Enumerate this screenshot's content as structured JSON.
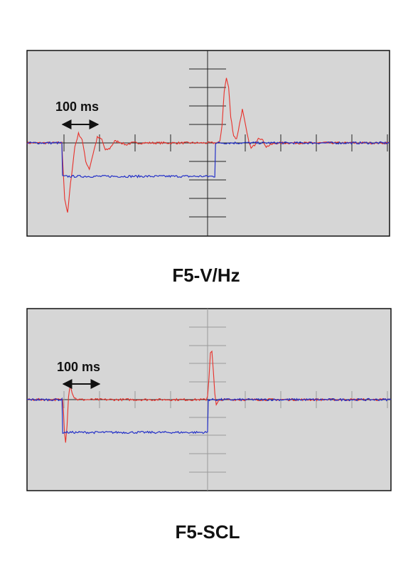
{
  "colors": {
    "background": "#ffffff",
    "screen": "#d6d6d6",
    "frame": "#111111",
    "grid": "#222222",
    "center_axis_light": "#9a9a9a",
    "red_trace": "#e8302a",
    "blue_trace": "#2330c8"
  },
  "chart_data": [
    {
      "type": "line",
      "title": "F5-V/Hz",
      "time_scale_label": "100 ms",
      "x_unit": "ms",
      "xlim": [
        0,
        1000
      ],
      "ylim": [
        -5,
        5
      ],
      "grid": "center cross with tick marks",
      "series": [
        {
          "color": "#e8302a",
          "points": [
            [
              0,
              0
            ],
            [
              96,
              0
            ],
            [
              98,
              -0.8
            ],
            [
              104,
              -3.0
            ],
            [
              112,
              -3.8
            ],
            [
              120,
              -2.2
            ],
            [
              132,
              -0.2
            ],
            [
              142,
              0.5
            ],
            [
              152,
              0.2
            ],
            [
              162,
              -1.0
            ],
            [
              172,
              -1.4
            ],
            [
              182,
              -0.6
            ],
            [
              194,
              0.3
            ],
            [
              206,
              0.2
            ],
            [
              216,
              -0.4
            ],
            [
              228,
              -0.3
            ],
            [
              242,
              0.1
            ],
            [
              256,
              0.05
            ],
            [
              272,
              -0.1
            ],
            [
              290,
              0
            ],
            [
              520,
              0
            ],
            [
              532,
              0.05
            ],
            [
              538,
              1.0
            ],
            [
              544,
              2.8
            ],
            [
              550,
              3.5
            ],
            [
              556,
              3.0
            ],
            [
              562,
              1.4
            ],
            [
              570,
              0.4
            ],
            [
              578,
              0.2
            ],
            [
              586,
              1.0
            ],
            [
              594,
              1.8
            ],
            [
              600,
              1.2
            ],
            [
              610,
              0.2
            ],
            [
              618,
              -0.3
            ],
            [
              628,
              -0.1
            ],
            [
              638,
              0.3
            ],
            [
              648,
              0.2
            ],
            [
              660,
              -0.2
            ],
            [
              672,
              -0.1
            ],
            [
              690,
              0
            ],
            [
              1000,
              0
            ]
          ]
        },
        {
          "color": "#2330c8",
          "points": [
            [
              0,
              0
            ],
            [
              96,
              0
            ],
            [
              98,
              -1.8
            ],
            [
              1000,
              -1.8
            ]
          ],
          "step_back_at": 520
        }
      ]
    },
    {
      "type": "line",
      "title": "F5-SCL",
      "time_scale_label": "100 ms",
      "x_unit": "ms",
      "xlim": [
        0,
        1000
      ],
      "ylim": [
        -5,
        5
      ],
      "grid": "center cross with tick marks",
      "series": [
        {
          "color": "#e8302a",
          "points": [
            [
              0,
              0
            ],
            [
              98,
              0
            ],
            [
              100,
              -0.6
            ],
            [
              103,
              -1.8
            ],
            [
              106,
              -2.3
            ],
            [
              110,
              -1.4
            ],
            [
              114,
              0.2
            ],
            [
              118,
              0.8
            ],
            [
              124,
              0.4
            ],
            [
              130,
              0.1
            ],
            [
              140,
              0
            ],
            [
              492,
              0
            ],
            [
              496,
              0.2
            ],
            [
              500,
              1.2
            ],
            [
              504,
              2.6
            ],
            [
              508,
              2.7
            ],
            [
              512,
              1.6
            ],
            [
              516,
              0.3
            ],
            [
              520,
              -0.3
            ],
            [
              526,
              -0.1
            ],
            [
              536,
              0
            ],
            [
              1000,
              0
            ]
          ]
        },
        {
          "color": "#2330c8",
          "points": [
            [
              0,
              0
            ],
            [
              96,
              0
            ],
            [
              98,
              -1.8
            ],
            [
              1000,
              -1.8
            ]
          ],
          "step_back_at": 498
        }
      ]
    }
  ]
}
